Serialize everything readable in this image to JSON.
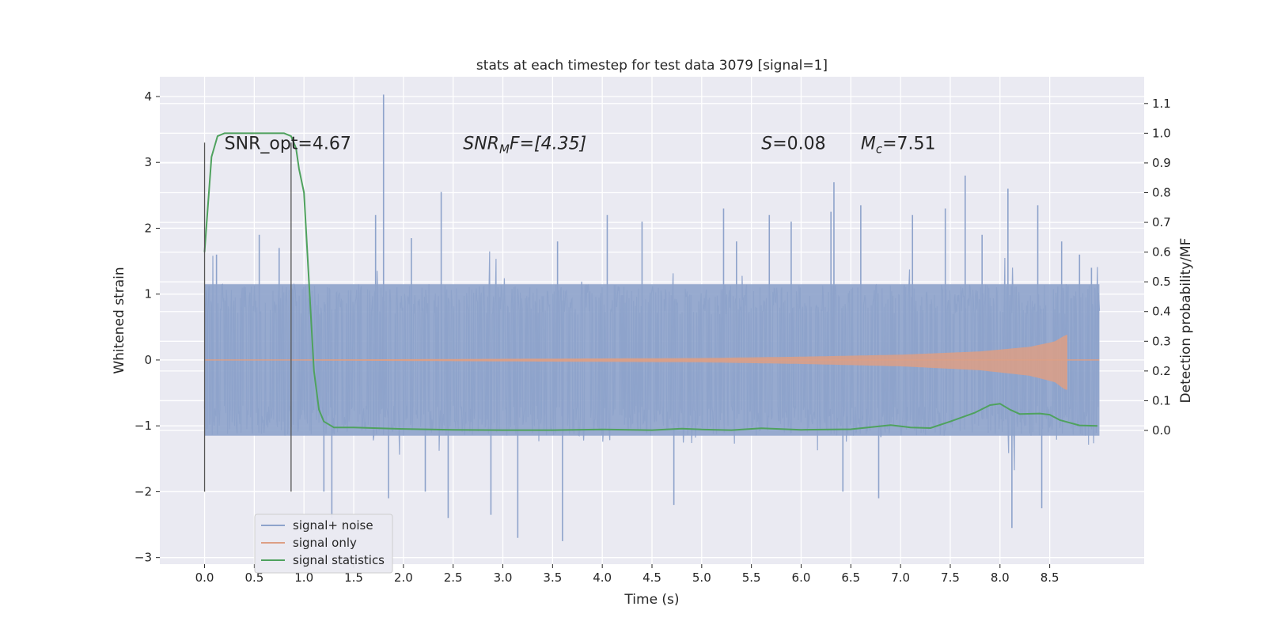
{
  "chart_data": {
    "type": "line",
    "title": "stats at each timestep for test data 3079 [signal=1]",
    "xlabel": "Time (s)",
    "ylabel": "Whitened strain",
    "y2label": "Detection probability/MF",
    "xlim": [
      -0.45,
      9.45
    ],
    "ylim": [
      -3.1,
      4.3
    ],
    "y2lim": [
      -0.45,
      1.19
    ],
    "x_ticks": [
      0.0,
      0.5,
      1.0,
      1.5,
      2.0,
      2.5,
      3.0,
      3.5,
      4.0,
      4.5,
      5.0,
      5.5,
      6.0,
      6.5,
      7.0,
      7.5,
      8.0,
      8.5
    ],
    "x_tick_labels": [
      "0.0",
      "0.5",
      "1.0",
      "1.5",
      "2.0",
      "2.5",
      "3.0",
      "3.5",
      "4.0",
      "4.5",
      "5.0",
      "5.5",
      "6.0",
      "6.5",
      "7.0",
      "7.5",
      "8.0",
      "8.5"
    ],
    "y_ticks": [
      -3,
      -2,
      -1,
      0,
      1,
      2,
      3,
      4
    ],
    "y_tick_labels": [
      "−3",
      "−2",
      "−1",
      "0",
      "1",
      "2",
      "3",
      "4"
    ],
    "y2_ticks": [
      0.0,
      0.1,
      0.2,
      0.3,
      0.4,
      0.5,
      0.6,
      0.7,
      0.8,
      0.9,
      1.0,
      1.1
    ],
    "y2_tick_labels": [
      "0.0",
      "0.1",
      "0.2",
      "0.3",
      "0.4",
      "0.5",
      "0.6",
      "0.7",
      "0.8",
      "0.9",
      "1.0",
      "1.1"
    ],
    "grid": true,
    "legend_position": "lower-left",
    "series": [
      {
        "name": "signal+ noise",
        "axis": "left",
        "color": "#8ea3cb",
        "x_range": [
          0.0,
          9.0
        ],
        "band_abs": 1.15,
        "peaks": [
          [
            0.12,
            1.6
          ],
          [
            0.55,
            1.9
          ],
          [
            0.75,
            1.7
          ],
          [
            1.2,
            -2.0
          ],
          [
            1.28,
            -2.4
          ],
          [
            1.72,
            2.2
          ],
          [
            1.8,
            4.03
          ],
          [
            1.85,
            -2.1
          ],
          [
            2.08,
            1.85
          ],
          [
            2.22,
            -2.0
          ],
          [
            2.38,
            2.55
          ],
          [
            2.45,
            -2.4
          ],
          [
            2.88,
            -2.35
          ],
          [
            3.15,
            -2.7
          ],
          [
            3.55,
            1.8
          ],
          [
            3.6,
            -2.75
          ],
          [
            4.05,
            2.2
          ],
          [
            4.4,
            2.1
          ],
          [
            4.72,
            -2.2
          ],
          [
            5.22,
            2.3
          ],
          [
            5.35,
            1.8
          ],
          [
            5.68,
            2.2
          ],
          [
            5.9,
            2.1
          ],
          [
            6.3,
            2.25
          ],
          [
            6.33,
            2.7
          ],
          [
            6.42,
            -2.0
          ],
          [
            6.6,
            2.35
          ],
          [
            6.78,
            -2.1
          ],
          [
            7.12,
            2.2
          ],
          [
            7.45,
            2.3
          ],
          [
            7.65,
            2.8
          ],
          [
            7.82,
            1.9
          ],
          [
            8.08,
            2.6
          ],
          [
            8.12,
            -2.55
          ],
          [
            8.38,
            2.35
          ],
          [
            8.42,
            -2.25
          ],
          [
            8.62,
            1.8
          ],
          [
            8.8,
            1.6
          ],
          [
            8.92,
            1.4
          ]
        ]
      },
      {
        "name": "signal only",
        "axis": "left",
        "color": "#dd9f85",
        "x_range": [
          0.0,
          8.67
        ],
        "chirp_end": 8.67,
        "envelope": [
          [
            5.0,
            0.03
          ],
          [
            6.0,
            0.05
          ],
          [
            7.0,
            0.08
          ],
          [
            7.8,
            0.13
          ],
          [
            8.3,
            0.2
          ],
          [
            8.55,
            0.28
          ],
          [
            8.66,
            0.38
          ]
        ]
      },
      {
        "name": "signal statistics",
        "axis": "right",
        "color": "#4fa25e",
        "x": [
          0.0,
          0.07,
          0.13,
          0.2,
          0.3,
          0.5,
          0.7,
          0.8,
          0.87,
          0.92,
          0.95,
          1.0,
          1.05,
          1.1,
          1.15,
          1.2,
          1.3,
          1.5,
          2.0,
          2.5,
          3.0,
          3.5,
          4.0,
          4.5,
          4.8,
          5.0,
          5.3,
          5.6,
          6.0,
          6.5,
          6.9,
          7.1,
          7.3,
          7.5,
          7.75,
          7.9,
          8.0,
          8.1,
          8.2,
          8.4,
          8.5,
          8.6,
          8.8,
          8.98
        ],
        "y": [
          0.6,
          0.92,
          0.99,
          1.0,
          1.0,
          1.0,
          1.0,
          1.0,
          0.99,
          0.95,
          0.88,
          0.8,
          0.5,
          0.2,
          0.07,
          0.03,
          0.01,
          0.01,
          0.005,
          0.002,
          0.001,
          0.001,
          0.003,
          0.001,
          0.006,
          0.003,
          0.001,
          0.007,
          0.002,
          0.004,
          0.018,
          0.01,
          0.008,
          0.03,
          0.06,
          0.085,
          0.09,
          0.07,
          0.055,
          0.057,
          0.053,
          0.035,
          0.017,
          0.015
        ]
      }
    ],
    "vlines": [
      {
        "x": 0.0,
        "y_range": [
          -2.0,
          3.3
        ],
        "color": "#555555"
      },
      {
        "x": 0.87,
        "y_range": [
          -2.0,
          3.3
        ],
        "color": "#555555"
      }
    ],
    "annotations": [
      {
        "id": "snr-opt",
        "text": "SNR_opt=4.67",
        "x": 0.2,
        "y": 3.2
      },
      {
        "id": "snr-mf",
        "base": "SNR",
        "sub": "M",
        "rest": "F=[4.35]",
        "x": 2.6,
        "y": 3.2
      },
      {
        "id": "spin",
        "base": "S",
        "sub": "",
        "rest": "=0.08",
        "x": 5.6,
        "y": 3.2
      },
      {
        "id": "chirp-mass",
        "base": "M",
        "sub": "c",
        "rest": "=7.51",
        "x": 6.6,
        "y": 3.2
      }
    ]
  }
}
